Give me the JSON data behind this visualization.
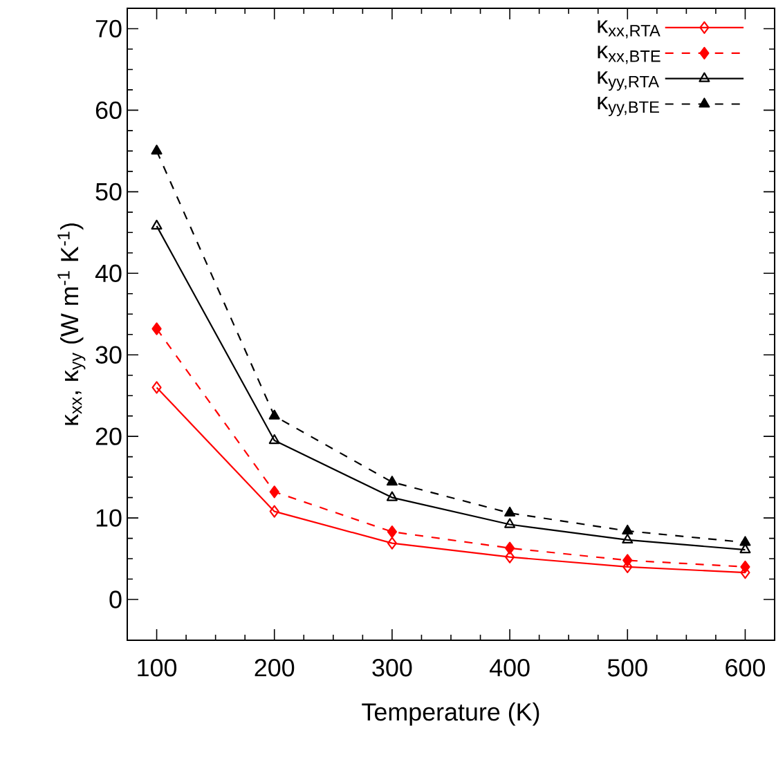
{
  "chart_data": {
    "type": "line",
    "xlabel": "Temperature (K)",
    "ylabel": "κ$_{xx}$, κ$_{yy}$ (W m$^{-1}$ K$^{-1}$)",
    "x": [
      100,
      200,
      300,
      400,
      500,
      600
    ],
    "series": [
      {
        "name": "κ$_{xx,RTA}$",
        "color": "#ff0000",
        "marker": "diamond",
        "line_style": "solid",
        "values": [
          26.0,
          10.8,
          6.9,
          5.2,
          4.0,
          3.3
        ]
      },
      {
        "name": "κ$_{xx,BTE}$",
        "color": "#ff0000",
        "marker": "diamond",
        "line_style": "dashed",
        "values": [
          33.2,
          13.2,
          8.3,
          6.3,
          4.8,
          4.0
        ]
      },
      {
        "name": "κ$_{yy,RTA}$",
        "color": "#000000",
        "marker": "triangle",
        "line_style": "solid",
        "values": [
          45.8,
          19.5,
          12.5,
          9.2,
          7.3,
          6.1
        ]
      },
      {
        "name": "κ$_{yy,BTE}$",
        "color": "#000000",
        "marker": "triangle",
        "line_style": "dashed",
        "values": [
          55.0,
          22.5,
          14.4,
          10.6,
          8.4,
          7.0
        ]
      }
    ],
    "xlim": [
      75,
      625
    ],
    "ylim": [
      -5,
      72.5
    ],
    "xticks": [
      100,
      200,
      300,
      400,
      500,
      600
    ],
    "yticks": [
      0,
      10,
      20,
      30,
      40,
      50,
      60,
      70
    ],
    "legend": "top right",
    "grid": false
  }
}
